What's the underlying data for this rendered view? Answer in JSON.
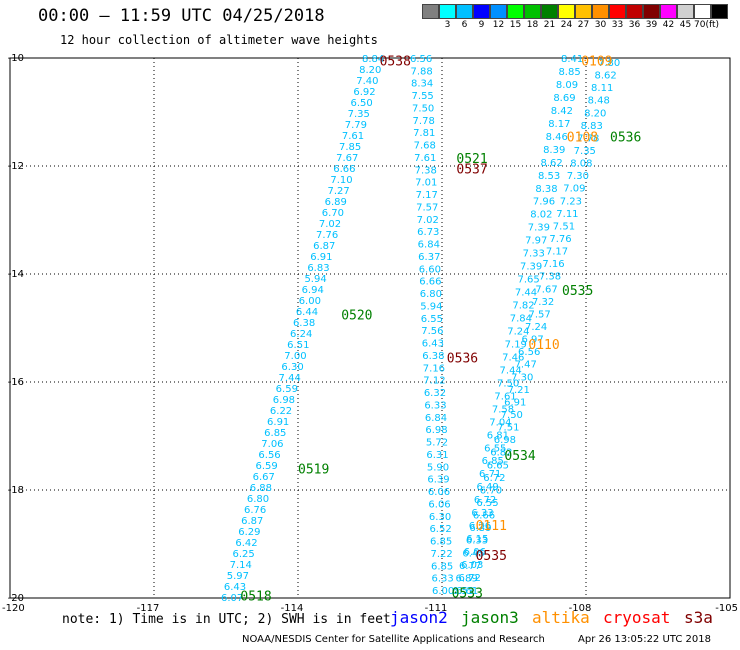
{
  "header": {
    "title": "00:00 – 11:59 UTC 04/25/2018",
    "subtitle": "12 hour collection of altimeter wave heights"
  },
  "legend": {
    "unit": "(ft)",
    "cells": [
      {
        "color": "#808080",
        "label": ""
      },
      {
        "color": "#00ffff",
        "label": "3"
      },
      {
        "color": "#00c0ff",
        "label": "6"
      },
      {
        "color": "#0000ff",
        "label": "9"
      },
      {
        "color": "#0090ff",
        "label": "12"
      },
      {
        "color": "#00ff00",
        "label": "15"
      },
      {
        "color": "#00c000",
        "label": "18"
      },
      {
        "color": "#008000",
        "label": "21"
      },
      {
        "color": "#ffff00",
        "label": "24"
      },
      {
        "color": "#ffc000",
        "label": "27"
      },
      {
        "color": "#ff9000",
        "label": "30"
      },
      {
        "color": "#ff0000",
        "label": "33"
      },
      {
        "color": "#c00000",
        "label": "36"
      },
      {
        "color": "#800000",
        "label": "39"
      },
      {
        "color": "#ff00ff",
        "label": "42"
      },
      {
        "color": "#d0d0d0",
        "label": "45"
      },
      {
        "color": "#ffffff",
        "label": "70"
      },
      {
        "color": "#000000",
        "label": ""
      }
    ]
  },
  "map": {
    "lon_range": [
      -120,
      -105
    ],
    "lat_range": [
      -20,
      -10
    ],
    "lat_labels": [
      "-10",
      "-12",
      "-14",
      "-16",
      "-18",
      "-20"
    ],
    "lon_labels": [
      "-120",
      "-117",
      "-114",
      "-111",
      "-108",
      "-105"
    ],
    "value_color": "#00c0ff",
    "tracks": [
      {
        "values": [
          "6.07",
          "6.43",
          "5.97",
          "7.14",
          "6.25",
          "6.42",
          "6.29",
          "6.87",
          "6.76",
          "6.80",
          "6.88",
          "6.67",
          "6.59",
          "6.56",
          "7.06",
          "6.85",
          "6.91",
          "6.22",
          "6.98",
          "6.59",
          "7.44",
          "6.30",
          "7.00",
          "6.51",
          "6.24",
          "6.38",
          "6.44",
          "6.00",
          "6.94",
          "5.94",
          "6.83",
          "6.91",
          "6.87",
          "7.76",
          "7.02",
          "6.70",
          "6.89",
          "7.27",
          "7.10",
          "6.66",
          "7.67",
          "7.85",
          "7.61",
          "7.79",
          "7.35",
          "6.50",
          "6.92",
          "7.40",
          "8.20",
          "8.84"
        ],
        "x0": 221,
        "y0": 597,
        "x1": 362,
        "y1": 58
      },
      {
        "values": [
          "6.56",
          "7.88",
          "8.34",
          "7.55",
          "7.50",
          "7.78",
          "7.81",
          "7.68",
          "7.61",
          "7.38",
          "7.01",
          "7.17",
          "7.57",
          "7.02",
          "6.73",
          "6.84",
          "6.37",
          "6.60",
          "6.66",
          "6.80",
          "5.94",
          "6.55",
          "7.56",
          "6.43",
          "6.38",
          "7.16",
          "7.12",
          "6.32",
          "6.33",
          "6.84",
          "6.98",
          "5.72",
          "6.31",
          "5.90",
          "6.39",
          "6.06",
          "6.06",
          "6.30",
          "6.52",
          "6.85",
          "7.22",
          "6.85",
          "6.33",
          "6.00"
        ],
        "x0": 410,
        "y0": 58,
        "x1": 432,
        "y1": 590
      },
      {
        "values": [
          "8.41",
          "8.85",
          "8.09",
          "8.69",
          "8.42",
          "8.17",
          "8.46",
          "8.39",
          "8.62",
          "8.53",
          "8.38",
          "7.96",
          "8.02",
          "7.39",
          "7.97",
          "7.33",
          "7.39",
          "7.65",
          "7.44",
          "7.82",
          "7.84",
          "7.24",
          "7.19",
          "7.46",
          "7.44",
          "7.50",
          "7.61",
          "7.58",
          "7.04",
          "6.81",
          "6.55",
          "6.85",
          "6.71",
          "6.49",
          "6.72",
          "6.33",
          "6.26",
          "6.15",
          "6.06",
          "6.03",
          "6.72",
          "6.61"
        ],
        "x0": 561,
        "y0": 58,
        "x1": 456,
        "y1": 590
      },
      {
        "values": [
          "7.80",
          "8.62",
          "8.11",
          "8.48",
          "8.20",
          "8.83",
          "7.78",
          "7.35",
          "8.08",
          "7.30",
          "7.09",
          "7.23",
          "7.11",
          "7.51",
          "7.76",
          "7.17",
          "7.16",
          "7.38",
          "7.67",
          "7.32",
          "7.57",
          "7.24",
          "6.97",
          "6.56",
          "7.47",
          "7.30",
          "7.21",
          "6.91",
          "7.50",
          "7.51",
          "6.98",
          "6.82",
          "6.65",
          "6.72",
          "6.70",
          "6.55",
          "6.66",
          "6.39",
          "6.33",
          "6.45",
          "6.77",
          "6.89",
          "6.53"
        ],
        "x0": 598,
        "y0": 62,
        "x1": 452,
        "y1": 590
      }
    ],
    "passes": [
      {
        "label": "0538",
        "color": "#800000",
        "lon": -112.3,
        "lat": -10.05
      },
      {
        "label": "0521",
        "color": "#008000",
        "lon": -110.7,
        "lat": -11.85
      },
      {
        "label": "0537",
        "color": "#800000",
        "lon": -110.7,
        "lat": -12.05
      },
      {
        "label": "0520",
        "color": "#008000",
        "lon": -113.1,
        "lat": -14.75
      },
      {
        "label": "0536",
        "color": "#800000",
        "lon": -110.9,
        "lat": -15.55
      },
      {
        "label": "0519",
        "color": "#008000",
        "lon": -114.0,
        "lat": -17.6
      },
      {
        "label": "0518",
        "color": "#008000",
        "lon": -115.2,
        "lat": -19.95
      },
      {
        "label": "0109",
        "color": "#ff9000",
        "lon": -108.1,
        "lat": -10.05
      },
      {
        "label": "0536",
        "color": "#008000",
        "lon": -107.5,
        "lat": -11.45
      },
      {
        "label": "0108",
        "color": "#ff9000",
        "lon": -108.4,
        "lat": -11.45
      },
      {
        "label": "0535",
        "color": "#008000",
        "lon": -108.5,
        "lat": -14.3
      },
      {
        "label": "0110",
        "color": "#ff9000",
        "lon": -109.2,
        "lat": -15.3
      },
      {
        "label": "0534",
        "color": "#008000",
        "lon": -109.7,
        "lat": -17.35
      },
      {
        "label": "0111",
        "color": "#ff9000",
        "lon": -110.3,
        "lat": -18.65
      },
      {
        "label": "0535",
        "color": "#800000",
        "lon": -110.3,
        "lat": -19.2
      },
      {
        "label": "0533",
        "color": "#008000",
        "lon": -110.8,
        "lat": -19.9
      }
    ]
  },
  "notes": {
    "text": "note: 1) Time is in UTC; 2) SWH is in feet",
    "satellites": [
      {
        "name": "jason2",
        "color": "#0000ff"
      },
      {
        "name": "jason3",
        "color": "#008000"
      },
      {
        "name": "altika",
        "color": "#ff9000"
      },
      {
        "name": "cryosat",
        "color": "#ff0000"
      },
      {
        "name": "s3a",
        "color": "#800000"
      }
    ]
  },
  "footer": {
    "left": "NOAA/NESDIS Center for Satellite Applications and Research",
    "right": "Apr 26 13:05:22 UTC 2018"
  }
}
